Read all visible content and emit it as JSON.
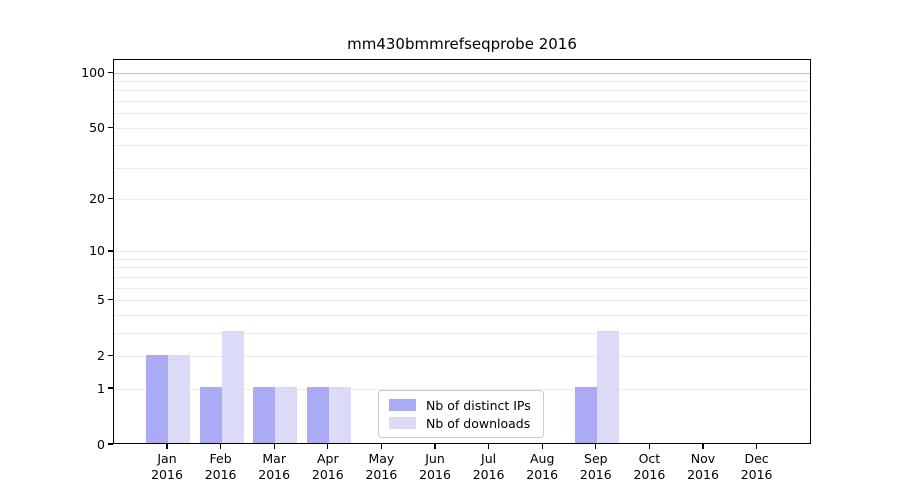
{
  "chart_data": {
    "type": "bar",
    "title": "mm430bmmrefseqprobe 2016",
    "xlabel": "",
    "ylabel": "",
    "categories": [
      "Jan",
      "Feb",
      "Mar",
      "Apr",
      "May",
      "Jun",
      "Jul",
      "Aug",
      "Sep",
      "Oct",
      "Nov",
      "Dec"
    ],
    "year_label": "2016",
    "series": [
      {
        "name": "Nb of distinct IPs",
        "color": "#aaaaf5",
        "values": [
          2,
          1,
          1,
          1,
          0,
          0,
          0,
          0,
          1,
          0,
          0,
          0
        ]
      },
      {
        "name": "Nb of downloads",
        "color": "#dbdbf8",
        "values": [
          2,
          3,
          1,
          1,
          0,
          0,
          0,
          0,
          3,
          0,
          0,
          0
        ]
      }
    ],
    "y_scale": "log1p",
    "y_ticks": [
      0,
      1,
      2,
      5,
      10,
      20,
      50,
      100
    ],
    "y_grid_values": [
      1,
      2,
      3,
      4,
      5,
      6,
      7,
      8,
      9,
      10,
      20,
      30,
      40,
      50,
      60,
      70,
      80,
      90,
      100
    ],
    "ylim": [
      0,
      118
    ],
    "grid_on": true,
    "grid_color_minor": "#ebebeb",
    "grid_color_top": "#c6c6c6",
    "axis_color": "#000000",
    "legend_position": "lower center"
  }
}
